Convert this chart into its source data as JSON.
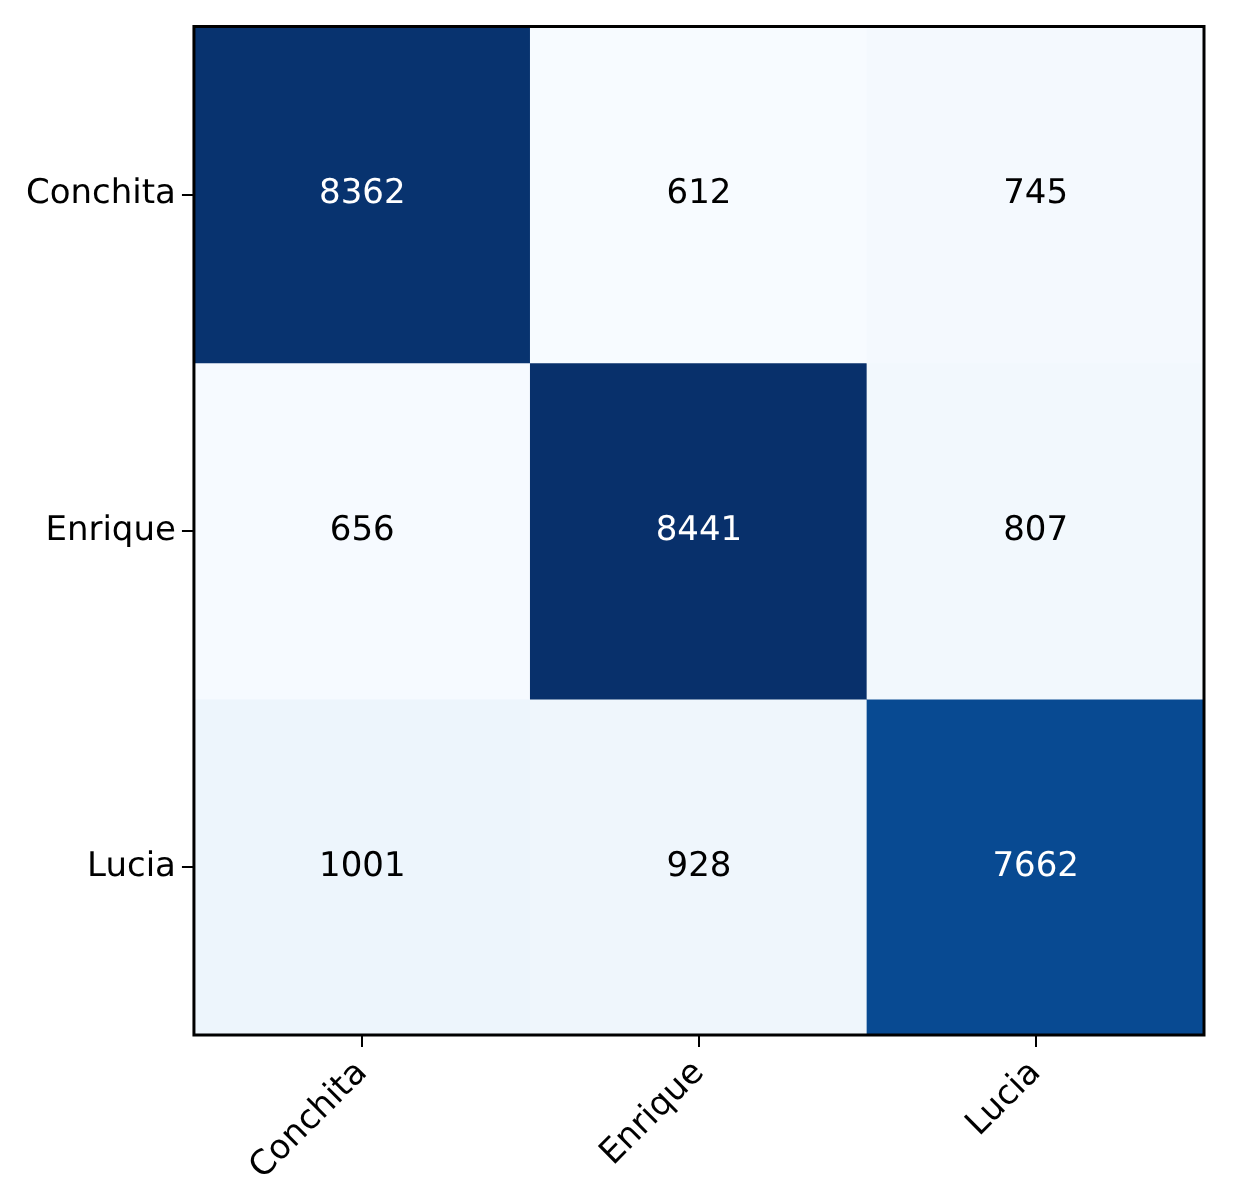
{
  "chart_data": {
    "type": "heatmap",
    "categories": [
      "Conchita",
      "Enrique",
      "Lucia"
    ],
    "y_categories": [
      "Conchita",
      "Enrique",
      "Lucia"
    ],
    "cells": [
      [
        8362,
        612,
        745
      ],
      [
        656,
        8441,
        807
      ],
      [
        1001,
        928,
        7662
      ]
    ],
    "data_labels": true
  }
}
